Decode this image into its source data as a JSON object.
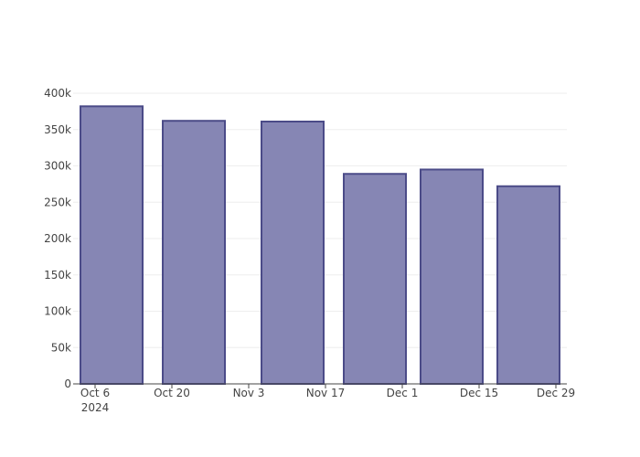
{
  "chart_data": {
    "type": "bar",
    "x": [
      "2024-10-09",
      "2024-10-24",
      "2024-11-11",
      "2024-11-26",
      "2024-12-10",
      "2024-12-24"
    ],
    "values": [
      382000,
      362000,
      361000,
      289000,
      295000,
      272000
    ],
    "color": "#7f7fb0",
    "xlim": [
      "2024-10-02",
      "2024-12-31"
    ],
    "xticks": [
      {
        "value": "2024-10-06",
        "label": "Oct 6\n2024"
      },
      {
        "value": "2024-10-20",
        "label": "Oct 20"
      },
      {
        "value": "2024-11-03",
        "label": "Nov 3"
      },
      {
        "value": "2024-11-17",
        "label": "Nov 17"
      },
      {
        "value": "2024-12-01",
        "label": "Dec 1"
      },
      {
        "value": "2024-12-15",
        "label": "Dec 15"
      },
      {
        "value": "2024-12-29",
        "label": "Dec 29"
      }
    ],
    "ylim": [
      0,
      400000
    ],
    "yticks": [
      0,
      {
        "value": 50000,
        "label": "50k"
      },
      {
        "value": 100000,
        "label": "100k"
      },
      {
        "value": 150000,
        "label": "150k"
      },
      {
        "value": 200000,
        "label": "200k"
      },
      {
        "value": 250000,
        "label": "250k"
      },
      {
        "value": 300000,
        "label": "300k"
      },
      {
        "value": 350000,
        "label": "350k"
      },
      {
        "value": 400000,
        "label": "400k"
      }
    ],
    "grid": true
  }
}
